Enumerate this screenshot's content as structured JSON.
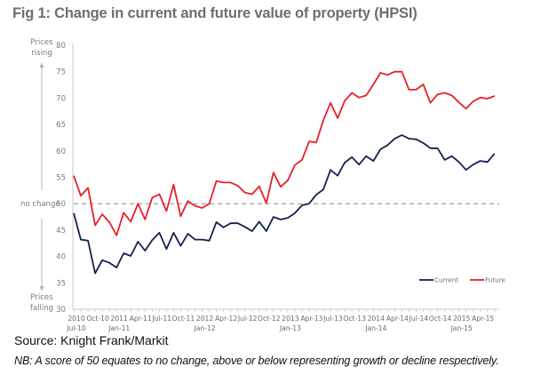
{
  "header": {
    "title": "Fig 1: Change in current and future value of property (HPSI)"
  },
  "footer": {
    "source": "Source: Knight Frank/Markit",
    "note": "NB: A score of 50 equates to no change, above or below representing growth or decline respectively."
  },
  "chart_data": {
    "type": "line",
    "title": "Fig 1: Change in current and future value of property (HPSI)",
    "xlabel": "",
    "ylabel": "",
    "ylim": [
      30,
      80
    ],
    "yticks": [
      30,
      35,
      40,
      45,
      50,
      55,
      60,
      65,
      70,
      75,
      80
    ],
    "grid": false,
    "legend_position": "bottom-right",
    "reference_line": {
      "value": 50,
      "label": "no change",
      "style": "dashed"
    },
    "side_labels": {
      "top": [
        "Prices",
        "rising"
      ],
      "bottom": [
        "Prices",
        "falling"
      ]
    },
    "x_start": "Jul-10",
    "x_tick_labels": [
      {
        "month_index": 0,
        "line1": "2010",
        "line2": "Jul-10"
      },
      {
        "month_index": 3,
        "line1": "Oct-10",
        "line2": ""
      },
      {
        "month_index": 6,
        "line1": "2011",
        "line2": "Jan-11"
      },
      {
        "month_index": 9,
        "line1": "Apr-11",
        "line2": ""
      },
      {
        "month_index": 12,
        "line1": "Jul-11",
        "line2": ""
      },
      {
        "month_index": 15,
        "line1": "Oct-11",
        "line2": ""
      },
      {
        "month_index": 18,
        "line1": "2012",
        "line2": "Jan-12"
      },
      {
        "month_index": 21,
        "line1": "Apr-12",
        "line2": ""
      },
      {
        "month_index": 24,
        "line1": "Jul-12",
        "line2": ""
      },
      {
        "month_index": 27,
        "line1": "Oct-12",
        "line2": ""
      },
      {
        "month_index": 30,
        "line1": "2013",
        "line2": "Jan-13"
      },
      {
        "month_index": 33,
        "line1": "Apr-13",
        "line2": ""
      },
      {
        "month_index": 36,
        "line1": "Jul-13",
        "line2": ""
      },
      {
        "month_index": 39,
        "line1": "Oct-13",
        "line2": ""
      },
      {
        "month_index": 42,
        "line1": "2014",
        "line2": "Jan-14"
      },
      {
        "month_index": 45,
        "line1": "Apr-14",
        "line2": ""
      },
      {
        "month_index": 48,
        "line1": "Jul-14",
        "line2": ""
      },
      {
        "month_index": 51,
        "line1": "Oct-14",
        "line2": ""
      },
      {
        "month_index": 54,
        "line1": "2015",
        "line2": "Jan-15"
      },
      {
        "month_index": 57,
        "line1": "Apr-15",
        "line2": ""
      }
    ],
    "series": [
      {
        "name": "Current",
        "color": "#14214f",
        "values": [
          48.2,
          43.2,
          43.0,
          36.8,
          39.3,
          38.8,
          37.9,
          40.6,
          40.1,
          42.8,
          41.1,
          43.1,
          44.5,
          41.4,
          44.5,
          42.0,
          44.3,
          43.2,
          43.2,
          43.0,
          46.5,
          45.5,
          46.3,
          46.3,
          45.6,
          44.8,
          46.6,
          44.8,
          47.5,
          47.0,
          47.3,
          48.2,
          49.7,
          50.0,
          51.7,
          52.7,
          56.4,
          55.3,
          57.8,
          58.8,
          57.4,
          59.0,
          58.1,
          60.3,
          61.1,
          62.3,
          63.0,
          62.3,
          62.2,
          61.5,
          60.5,
          60.5,
          58.3,
          59.0,
          57.9,
          56.4,
          57.4,
          58.1,
          57.9,
          59.5
        ]
      },
      {
        "name": "Future",
        "color": "#e8202a",
        "values": [
          55.3,
          51.5,
          53.0,
          45.9,
          48.0,
          46.5,
          44.0,
          48.3,
          46.6,
          50.0,
          47.0,
          51.1,
          51.8,
          48.6,
          53.6,
          47.6,
          50.5,
          49.6,
          49.2,
          50.0,
          54.3,
          54.0,
          54.0,
          53.4,
          52.1,
          51.8,
          53.3,
          50.1,
          55.9,
          53.2,
          54.4,
          57.3,
          58.3,
          61.8,
          61.6,
          65.8,
          69.1,
          66.2,
          69.5,
          71.0,
          70.1,
          70.5,
          72.6,
          74.8,
          74.4,
          75.0,
          75.0,
          71.6,
          71.6,
          72.6,
          69.1,
          70.7,
          71.0,
          70.5,
          69.2,
          68.0,
          69.4,
          70.1,
          69.9,
          70.4
        ]
      }
    ]
  }
}
